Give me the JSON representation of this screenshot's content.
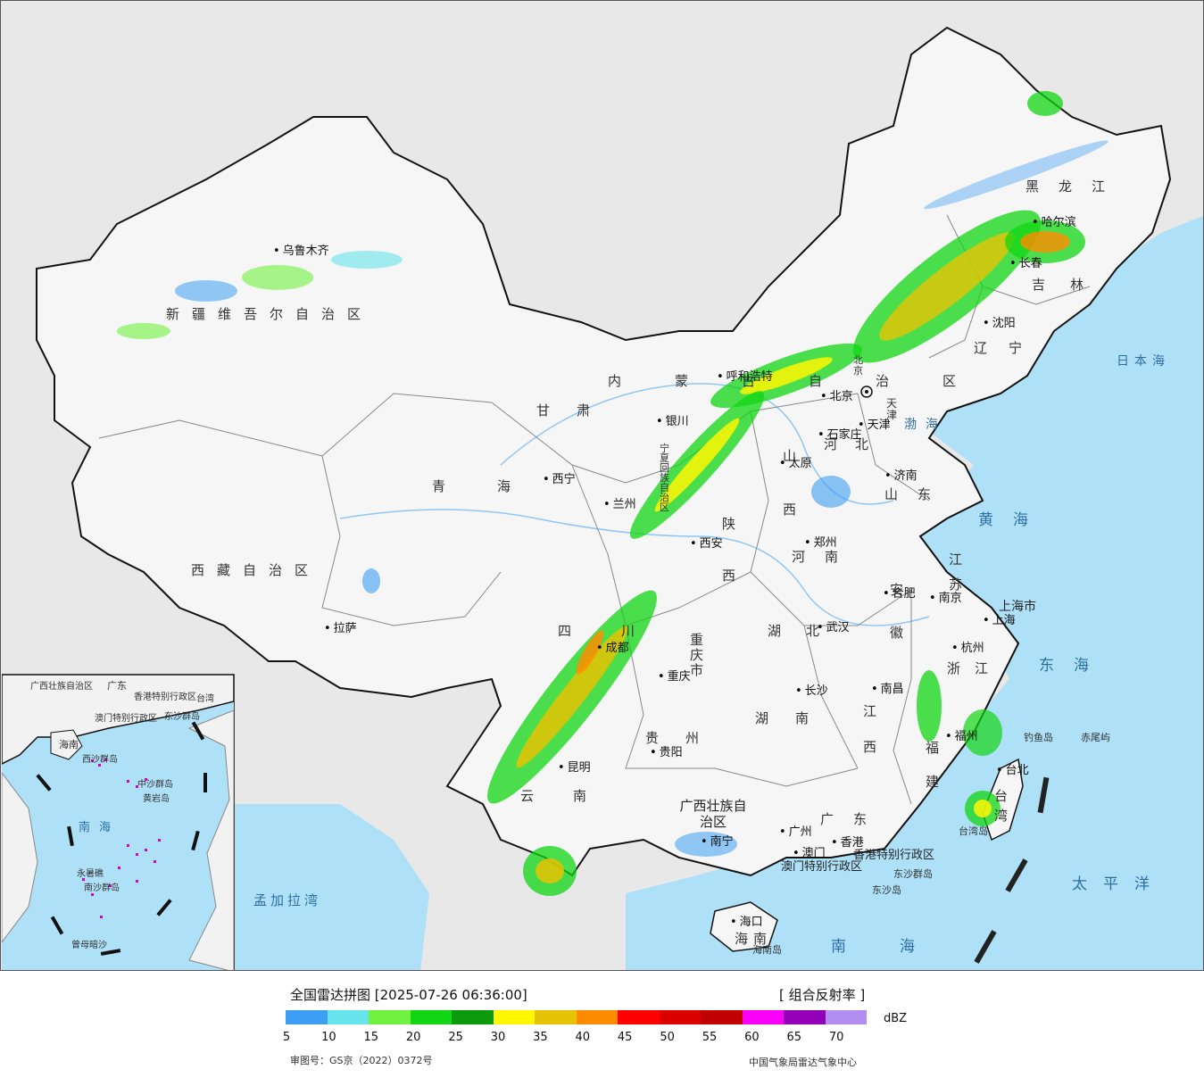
{
  "map": {
    "provinces": [
      {
        "id": "xinjiang",
        "text": "新疆维吾尔自治区"
      },
      {
        "id": "xizang",
        "text": "西藏自治区"
      },
      {
        "id": "qinghai",
        "text": "青海"
      },
      {
        "id": "gansu",
        "text": "甘肃"
      },
      {
        "id": "neimenggu",
        "text": "内蒙古自治区"
      },
      {
        "id": "heilongjiang",
        "text": "黑龙江"
      },
      {
        "id": "jilin",
        "text": "吉林"
      },
      {
        "id": "liaoning",
        "text": "辽宁"
      },
      {
        "id": "hebei",
        "text": "河北"
      },
      {
        "id": "shanxi",
        "text": "山西"
      },
      {
        "id": "shandong",
        "text": "山东"
      },
      {
        "id": "henan",
        "text": "河南"
      },
      {
        "id": "shaanxi",
        "text": "陕西"
      },
      {
        "id": "ningxia",
        "text": "宁夏回族自治区"
      },
      {
        "id": "sichuan",
        "text": "四川"
      },
      {
        "id": "chongqing",
        "text": "重庆市"
      },
      {
        "id": "hubei",
        "text": "湖北"
      },
      {
        "id": "hunan",
        "text": "湖南"
      },
      {
        "id": "jiangxi",
        "text": "江西"
      },
      {
        "id": "anhui",
        "text": "安徽"
      },
      {
        "id": "jiangsu",
        "text": "江苏"
      },
      {
        "id": "zhejiang",
        "text": "浙江"
      },
      {
        "id": "fujian",
        "text": "福建"
      },
      {
        "id": "guangdong",
        "text": "广东"
      },
      {
        "id": "guangxi",
        "text": "广西壮族自治区"
      },
      {
        "id": "guizhou",
        "text": "贵州"
      },
      {
        "id": "yunnan",
        "text": "云南"
      },
      {
        "id": "hainan",
        "text": "海南"
      },
      {
        "id": "taiwan",
        "text": "台湾"
      },
      {
        "id": "shanghai",
        "text": "上海市"
      },
      {
        "id": "tianjin",
        "text": "天津"
      },
      {
        "id": "beijing",
        "text": "北京"
      },
      {
        "id": "hongkong",
        "text": "香港特别行政区"
      },
      {
        "id": "macau",
        "text": "澳门特别行政区"
      }
    ],
    "cities": [
      {
        "id": "urumqi",
        "text": "乌鲁木齐"
      },
      {
        "id": "lhasa",
        "text": "拉萨"
      },
      {
        "id": "xining",
        "text": "西宁"
      },
      {
        "id": "lanzhou",
        "text": "兰州"
      },
      {
        "id": "yinchuan",
        "text": "银川"
      },
      {
        "id": "hohhot",
        "text": "呼和浩特"
      },
      {
        "id": "harbin",
        "text": "哈尔滨"
      },
      {
        "id": "changchun",
        "text": "长春"
      },
      {
        "id": "shenyang",
        "text": "沈阳"
      },
      {
        "id": "beijing_c",
        "text": "北京"
      },
      {
        "id": "tianjin_c",
        "text": "天津"
      },
      {
        "id": "shijiazhuang",
        "text": "石家庄"
      },
      {
        "id": "taiyuan",
        "text": "太原"
      },
      {
        "id": "jinan",
        "text": "济南"
      },
      {
        "id": "zhengzhou",
        "text": "郑州"
      },
      {
        "id": "xian",
        "text": "西安"
      },
      {
        "id": "chengdu",
        "text": "成都"
      },
      {
        "id": "chongqing_c",
        "text": "重庆"
      },
      {
        "id": "wuhan",
        "text": "武汉"
      },
      {
        "id": "changsha",
        "text": "长沙"
      },
      {
        "id": "nanchang",
        "text": "南昌"
      },
      {
        "id": "hefei",
        "text": "合肥"
      },
      {
        "id": "nanjing",
        "text": "南京"
      },
      {
        "id": "shanghai_c",
        "text": "上海"
      },
      {
        "id": "hangzhou",
        "text": "杭州"
      },
      {
        "id": "fuzhou",
        "text": "福州"
      },
      {
        "id": "taibei",
        "text": "台北"
      },
      {
        "id": "guangzhou",
        "text": "广州"
      },
      {
        "id": "hongkong_c",
        "text": "香港"
      },
      {
        "id": "macau_c",
        "text": "澳门"
      },
      {
        "id": "nanning",
        "text": "南宁"
      },
      {
        "id": "guiyang",
        "text": "贵阳"
      },
      {
        "id": "kunming",
        "text": "昆明"
      },
      {
        "id": "haikou",
        "text": "海口"
      }
    ],
    "seas": [
      {
        "id": "bohai",
        "text": "渤海"
      },
      {
        "id": "huanghai",
        "text": "黄海"
      },
      {
        "id": "donghai",
        "text": "东海"
      },
      {
        "id": "nanhai",
        "text": "南海"
      },
      {
        "id": "ribenhai",
        "text": "日本海"
      },
      {
        "id": "taipingyang",
        "text": "太平洋"
      },
      {
        "id": "mengjialawan",
        "text": "孟加拉湾"
      }
    ],
    "islands": [
      {
        "id": "diaoyudao",
        "text": "钓鱼岛"
      },
      {
        "id": "chiweiyu",
        "text": "赤尾屿"
      },
      {
        "id": "dongshaqundao",
        "text": "东沙群岛"
      },
      {
        "id": "dongshadao",
        "text": "东沙岛"
      },
      {
        "id": "hainandao",
        "text": "海南岛"
      },
      {
        "id": "taiwandao",
        "text": "台湾岛"
      }
    ],
    "inset_labels": [
      {
        "id": "i_guangdong",
        "text": "广东"
      },
      {
        "id": "i_guangxi",
        "text": "广西壮族自治区"
      },
      {
        "id": "i_xianggang",
        "text": "香港特别行政区"
      },
      {
        "id": "i_aomen",
        "text": "澳门特别行政区"
      },
      {
        "id": "i_taiwan",
        "text": "台湾"
      },
      {
        "id": "i_dongsha",
        "text": "东沙群岛"
      },
      {
        "id": "i_hainan",
        "text": "海南"
      },
      {
        "id": "i_xisha",
        "text": "西沙群岛"
      },
      {
        "id": "i_zhongsha",
        "text": "中沙群岛"
      },
      {
        "id": "i_huangyan",
        "text": "黄岩岛"
      },
      {
        "id": "i_nanhai",
        "text": "南海"
      },
      {
        "id": "i_nansha",
        "text": "南沙群岛"
      },
      {
        "id": "i_yongshu",
        "text": "永暑礁"
      },
      {
        "id": "i_zengmu",
        "text": "曾母暗沙"
      }
    ]
  },
  "legend": {
    "title": "全国雷达拼图 [2025-07-26 06:36:00]",
    "product": "[ 组合反射率 ]",
    "unit": "dBZ",
    "ticks": [
      "5",
      "10",
      "15",
      "20",
      "25",
      "30",
      "35",
      "40",
      "45",
      "50",
      "55",
      "60",
      "65",
      "70"
    ],
    "colors": [
      "#3d9ef3",
      "#67e4ec",
      "#71f23f",
      "#12d613",
      "#0b9a0b",
      "#fff703",
      "#e6c304",
      "#ff8c00",
      "#fe0000",
      "#da0000",
      "#c00001",
      "#fa00fa",
      "#9400b8",
      "#b28ef0"
    ],
    "approval": "审图号：GS京（2022）0372号",
    "agency": "中国气象局雷达气象中心"
  }
}
